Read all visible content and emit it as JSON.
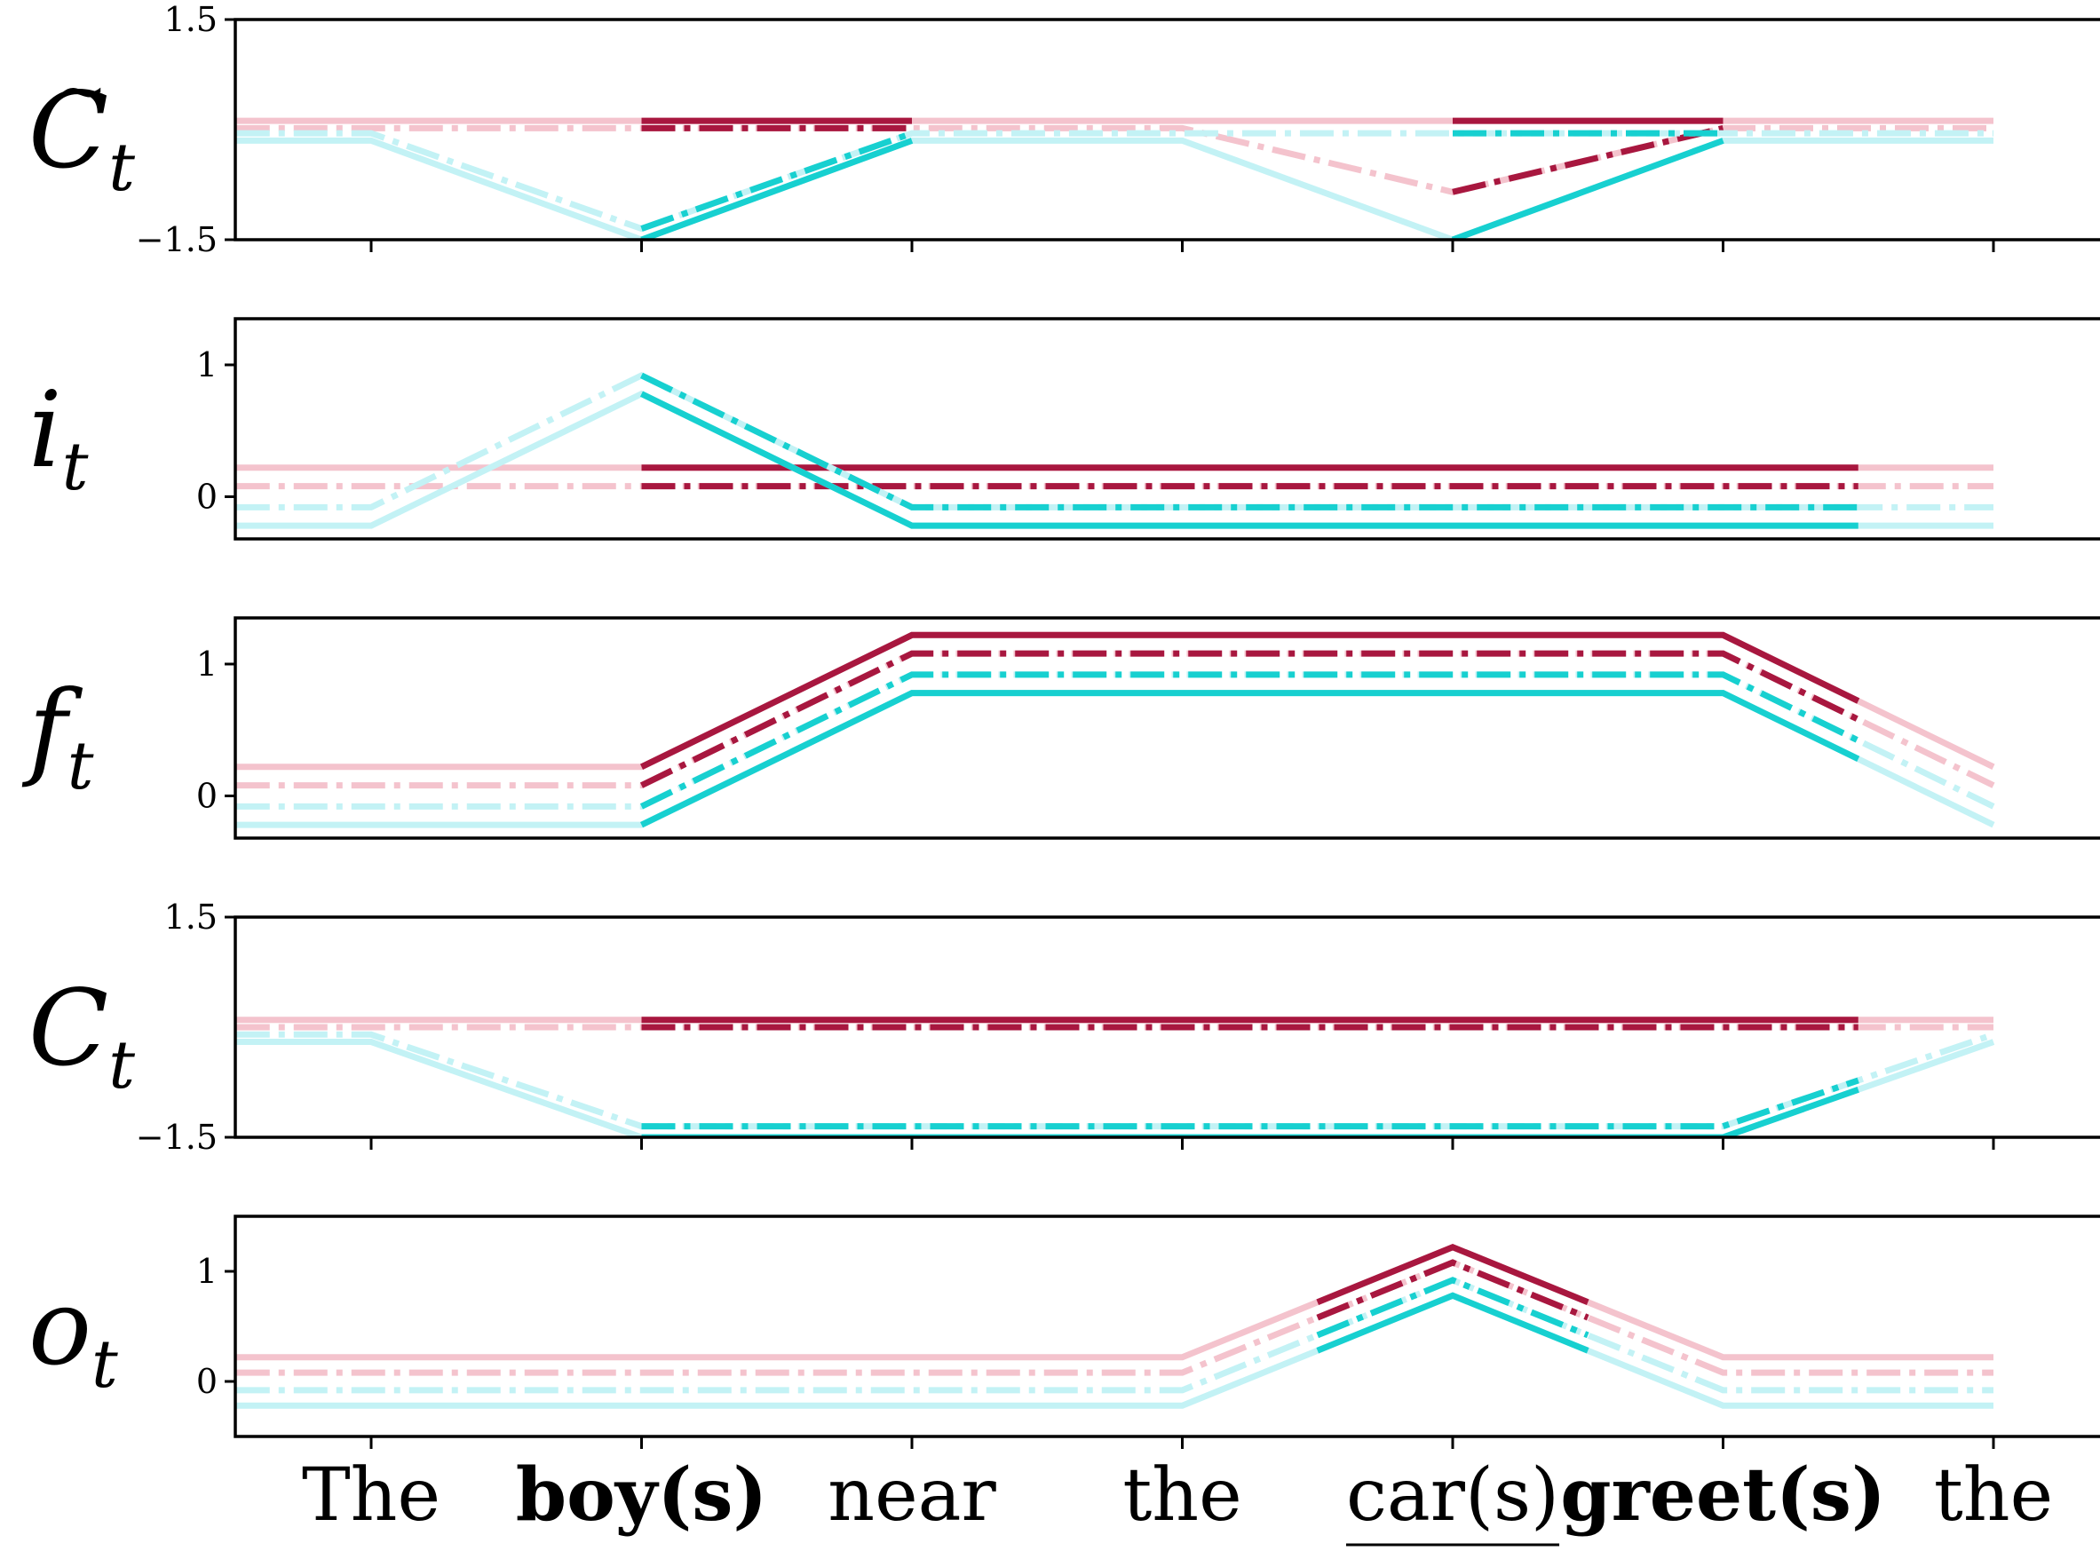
{
  "chart_data": {
    "type": "line",
    "x_categories": [
      "The",
      "boy(s)",
      "near",
      "the",
      "car(s)",
      "greet(s)",
      "the"
    ],
    "x_label_styles": [
      "normal",
      "bold",
      "normal",
      "normal",
      "underline",
      "bold",
      "normal"
    ],
    "series_styles": [
      {
        "color": "#a8173f",
        "dash": "solid"
      },
      {
        "color": "#a8173f",
        "dash": "dashdot"
      },
      {
        "color": "#17d0d0",
        "dash": "dashdot"
      },
      {
        "color": "#17d0d0",
        "dash": "solid"
      }
    ],
    "faded_colors": {
      "#a8173f": "#f4c3cd",
      "#17d0d0": "#c3f2f5"
    },
    "panels": [
      {
        "label_main": "C",
        "label_sub": "t",
        "label_tilde": true,
        "ylim": [
          -1.5,
          1.5
        ],
        "yticks": [
          {
            "v": -1.5,
            "label": "−1.5"
          },
          {
            "v": 1.5,
            "label": "1.5"
          }
        ],
        "show_xticks": true,
        "series": [
          {
            "y": [
              0.12,
              0.12,
              0.12,
              0.12,
              0.12,
              0.12,
              0.12
            ],
            "highlight": [
              [
                1,
                2
              ],
              [
                4,
                5
              ]
            ]
          },
          {
            "y": [
              0.02,
              0.02,
              0.02,
              0.02,
              -0.85,
              0.02,
              0.02
            ],
            "highlight": [
              [
                1,
                2
              ],
              [
                4,
                5
              ]
            ]
          },
          {
            "y": [
              -0.05,
              -1.35,
              -0.05,
              -0.05,
              -0.05,
              -0.05,
              -0.05
            ],
            "highlight": [
              [
                1,
                2
              ],
              [
                4,
                5
              ]
            ]
          },
          {
            "y": [
              -0.15,
              -1.5,
              -0.15,
              -0.15,
              -1.5,
              -0.15,
              -0.15
            ],
            "highlight": [
              [
                1,
                2
              ],
              [
                4,
                5
              ]
            ]
          }
        ]
      },
      {
        "label_main": "i",
        "label_sub": "t",
        "label_tilde": false,
        "ylim": [
          -0.32,
          1.35
        ],
        "yticks": [
          {
            "v": 0,
            "label": "0"
          },
          {
            "v": 1,
            "label": "1"
          }
        ],
        "show_xticks": false,
        "series": [
          {
            "y": [
              0.22,
              0.22,
              0.22,
              0.22,
              0.22,
              0.22,
              0.22
            ],
            "highlight": [
              [
                1,
                5.5
              ]
            ]
          },
          {
            "y": [
              0.08,
              0.08,
              0.08,
              0.08,
              0.08,
              0.08,
              0.08
            ],
            "highlight": [
              [
                1,
                5.5
              ]
            ]
          },
          {
            "y": [
              -0.08,
              0.92,
              -0.08,
              -0.08,
              -0.08,
              -0.08,
              -0.08
            ],
            "highlight": [
              [
                1,
                5.5
              ]
            ]
          },
          {
            "y": [
              -0.22,
              0.78,
              -0.22,
              -0.22,
              -0.22,
              -0.22,
              -0.22
            ],
            "highlight": [
              [
                1,
                5.5
              ]
            ]
          }
        ]
      },
      {
        "label_main": "f",
        "label_sub": "t",
        "label_tilde": false,
        "ylim": [
          -0.32,
          1.35
        ],
        "yticks": [
          {
            "v": 0,
            "label": "0"
          },
          {
            "v": 1,
            "label": "1"
          }
        ],
        "show_xticks": false,
        "series": [
          {
            "y": [
              0.22,
              0.22,
              1.22,
              1.22,
              1.22,
              1.22,
              0.22
            ],
            "highlight": [
              [
                1,
                5.5
              ]
            ]
          },
          {
            "y": [
              0.08,
              0.08,
              1.08,
              1.08,
              1.08,
              1.08,
              0.08
            ],
            "highlight": [
              [
                1,
                5.5
              ]
            ]
          },
          {
            "y": [
              -0.08,
              -0.08,
              0.92,
              0.92,
              0.92,
              0.92,
              -0.08
            ],
            "highlight": [
              [
                1,
                5.5
              ]
            ]
          },
          {
            "y": [
              -0.22,
              -0.22,
              0.78,
              0.78,
              0.78,
              0.78,
              -0.22
            ],
            "highlight": [
              [
                1,
                5.5
              ]
            ]
          }
        ]
      },
      {
        "label_main": "C",
        "label_sub": "t",
        "label_tilde": false,
        "ylim": [
          -1.5,
          1.5
        ],
        "yticks": [
          {
            "v": -1.5,
            "label": "−1.5"
          },
          {
            "v": 1.5,
            "label": "1.5"
          }
        ],
        "show_xticks": true,
        "series": [
          {
            "y": [
              0.1,
              0.1,
              0.1,
              0.1,
              0.1,
              0.1,
              0.1
            ],
            "highlight": [
              [
                1,
                5.5
              ]
            ]
          },
          {
            "y": [
              0.0,
              0.0,
              0.0,
              0.0,
              0.0,
              0.0,
              0.0
            ],
            "highlight": [
              [
                1,
                5.5
              ]
            ]
          },
          {
            "y": [
              -0.1,
              -1.35,
              -1.35,
              -1.35,
              -1.35,
              -1.35,
              -0.1
            ],
            "highlight": [
              [
                1,
                5.5
              ]
            ]
          },
          {
            "y": [
              -0.2,
              -1.5,
              -1.5,
              -1.5,
              -1.5,
              -1.5,
              -0.2
            ],
            "highlight": [
              [
                1,
                5.5
              ]
            ]
          }
        ]
      },
      {
        "label_main": "o",
        "label_sub": "t",
        "label_tilde": false,
        "ylim": [
          -0.5,
          1.5
        ],
        "yticks": [
          {
            "v": 0,
            "label": "0"
          },
          {
            "v": 1,
            "label": "1"
          }
        ],
        "show_xticks": false,
        "series": [
          {
            "y": [
              0.22,
              0.22,
              0.22,
              0.22,
              1.22,
              0.22,
              0.22
            ],
            "highlight": [
              [
                3.5,
                4.5
              ]
            ]
          },
          {
            "y": [
              0.08,
              0.08,
              0.08,
              0.08,
              1.08,
              0.08,
              0.08
            ],
            "highlight": [
              [
                3.5,
                4.5
              ]
            ]
          },
          {
            "y": [
              -0.08,
              -0.08,
              -0.08,
              -0.08,
              0.92,
              -0.08,
              -0.08
            ],
            "highlight": [
              [
                3.5,
                4.5
              ]
            ]
          },
          {
            "y": [
              -0.22,
              -0.22,
              -0.22,
              -0.22,
              0.78,
              -0.22,
              -0.22
            ],
            "highlight": [
              [
                3.5,
                4.5
              ]
            ]
          }
        ]
      }
    ]
  }
}
